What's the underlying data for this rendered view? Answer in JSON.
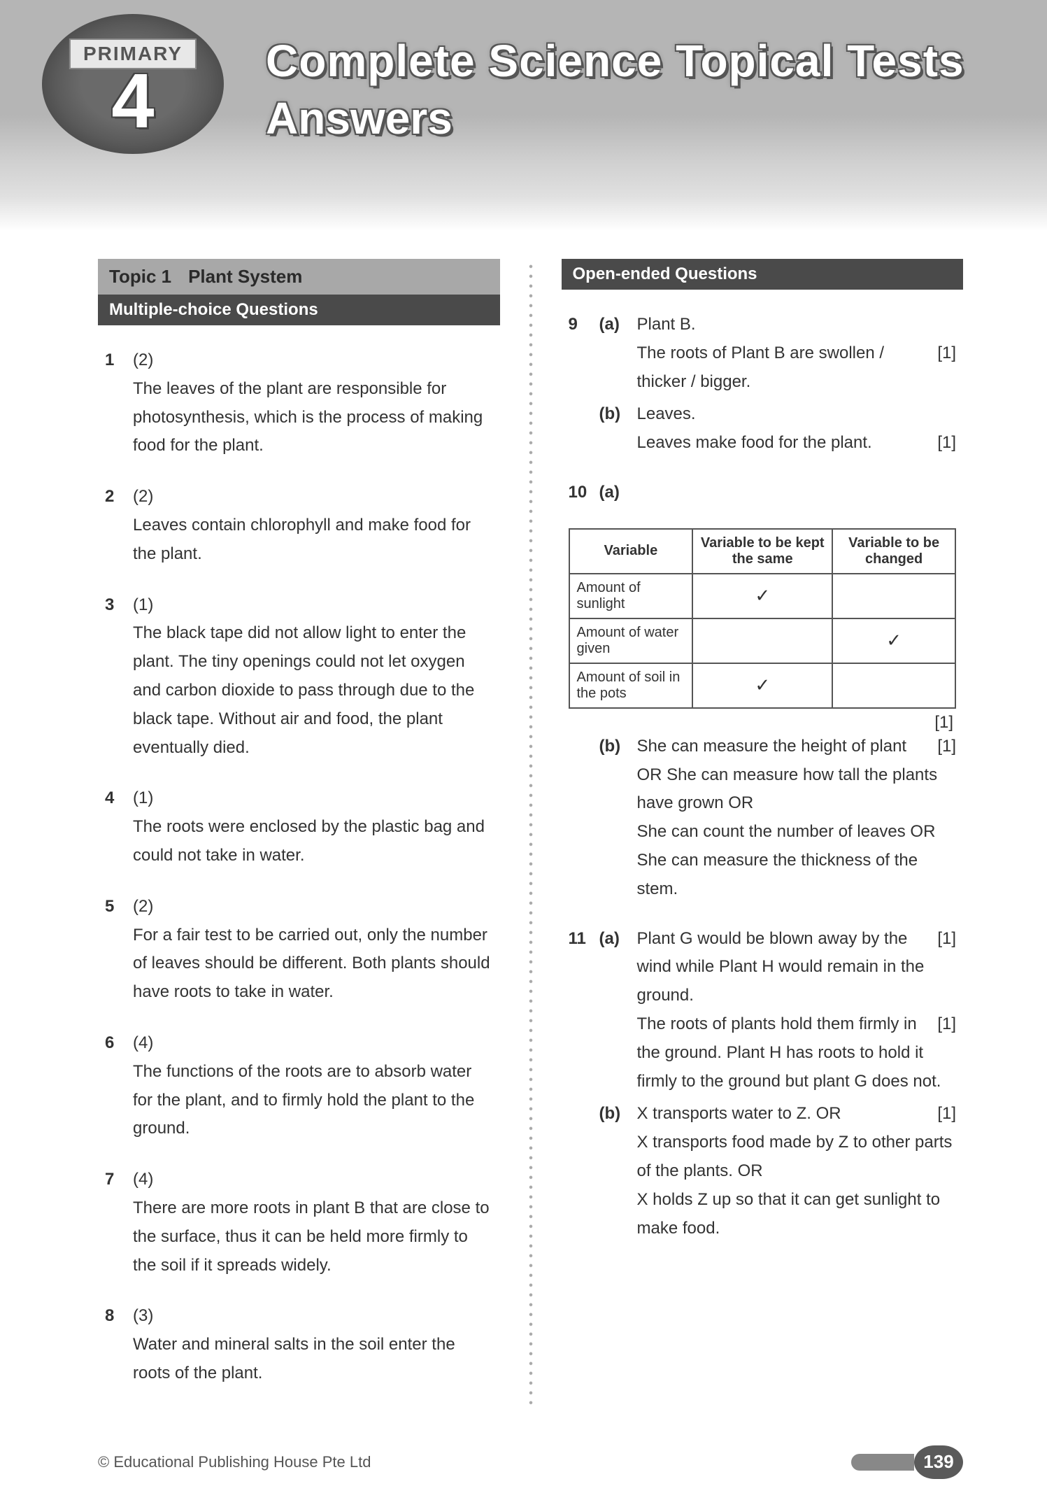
{
  "header": {
    "level_label": "PRIMARY",
    "level_number": "4",
    "title_line1": "Complete Science Topical Tests",
    "title_line2": "Answers"
  },
  "topic": {
    "label": "Topic 1",
    "name": "Plant System"
  },
  "mcq": {
    "heading": "Multiple-choice Questions",
    "items": [
      {
        "num": "1",
        "ans": "(2)",
        "text": "The leaves of the plant are responsible for photosynthesis, which is the process of making food for the plant."
      },
      {
        "num": "2",
        "ans": "(2)",
        "text": "Leaves contain chlorophyll and make food for the plant."
      },
      {
        "num": "3",
        "ans": "(1)",
        "text": "The black tape did not allow light to enter the plant. The tiny openings could not let oxygen and carbon dioxide to pass through due to the black tape. Without air and food, the plant eventually died."
      },
      {
        "num": "4",
        "ans": "(1)",
        "text": "The roots were enclosed by the plastic bag and could not take in water."
      },
      {
        "num": "5",
        "ans": "(2)",
        "text": "For a fair test to be carried out, only the number of leaves should be different. Both plants should have roots to take in water."
      },
      {
        "num": "6",
        "ans": "(4)",
        "text": "The functions of the roots are to absorb water for the plant, and to firmly hold the plant to the ground."
      },
      {
        "num": "7",
        "ans": "(4)",
        "text": "There are more roots in plant B that are close to the surface, thus it can be held more firmly to the soil if it spreads widely."
      },
      {
        "num": "8",
        "ans": "(3)",
        "text": "Water and mineral salts in the soil enter the roots of the plant."
      }
    ]
  },
  "oeq": {
    "heading": "Open-ended Questions",
    "q9": {
      "num": "9",
      "a_label": "(a)",
      "a_line1": "Plant B.",
      "a_line2": "The roots of Plant B are swollen / thicker / bigger.",
      "a_mark": "[1]",
      "b_label": "(b)",
      "b_line1": "Leaves.",
      "b_line2": "Leaves make food for the plant.",
      "b_mark": "[1]"
    },
    "q10": {
      "num": "10",
      "a_label": "(a)",
      "table": {
        "h1": "Variable",
        "h2": "Variable to be kept the same",
        "h3": "Variable to be changed",
        "rows": [
          {
            "var": "Amount of sunlight",
            "same": "✓",
            "changed": ""
          },
          {
            "var": "Amount of water given",
            "same": "",
            "changed": "✓"
          },
          {
            "var": "Amount of soil in the pots",
            "same": "✓",
            "changed": ""
          }
        ]
      },
      "a_mark": "[1]",
      "b_label": "(b)",
      "b_text": "She can measure the height of plant OR She can measure how tall the plants have grown OR\nShe can count the number of leaves OR She can measure the thickness of the stem.",
      "b_mark": "[1]"
    },
    "q11": {
      "num": "11",
      "a_label": "(a)",
      "a_p1": "Plant G would be blown away by the wind while Plant H would remain in the ground.",
      "a_mark1": "[1]",
      "a_p2": "The roots of plants hold them firmly in the ground. Plant H has roots to hold it firmly to the ground but plant G does not.",
      "a_mark2": "[1]",
      "b_label": "(b)",
      "b_text": "X transports water to Z. OR\nX transports food made by Z to other parts of the plants. OR\nX holds Z up so that it can get sunlight to make food.",
      "b_mark": "[1]"
    }
  },
  "footer": {
    "copyright": "© Educational Publishing House Pte Ltd",
    "page": "139"
  }
}
